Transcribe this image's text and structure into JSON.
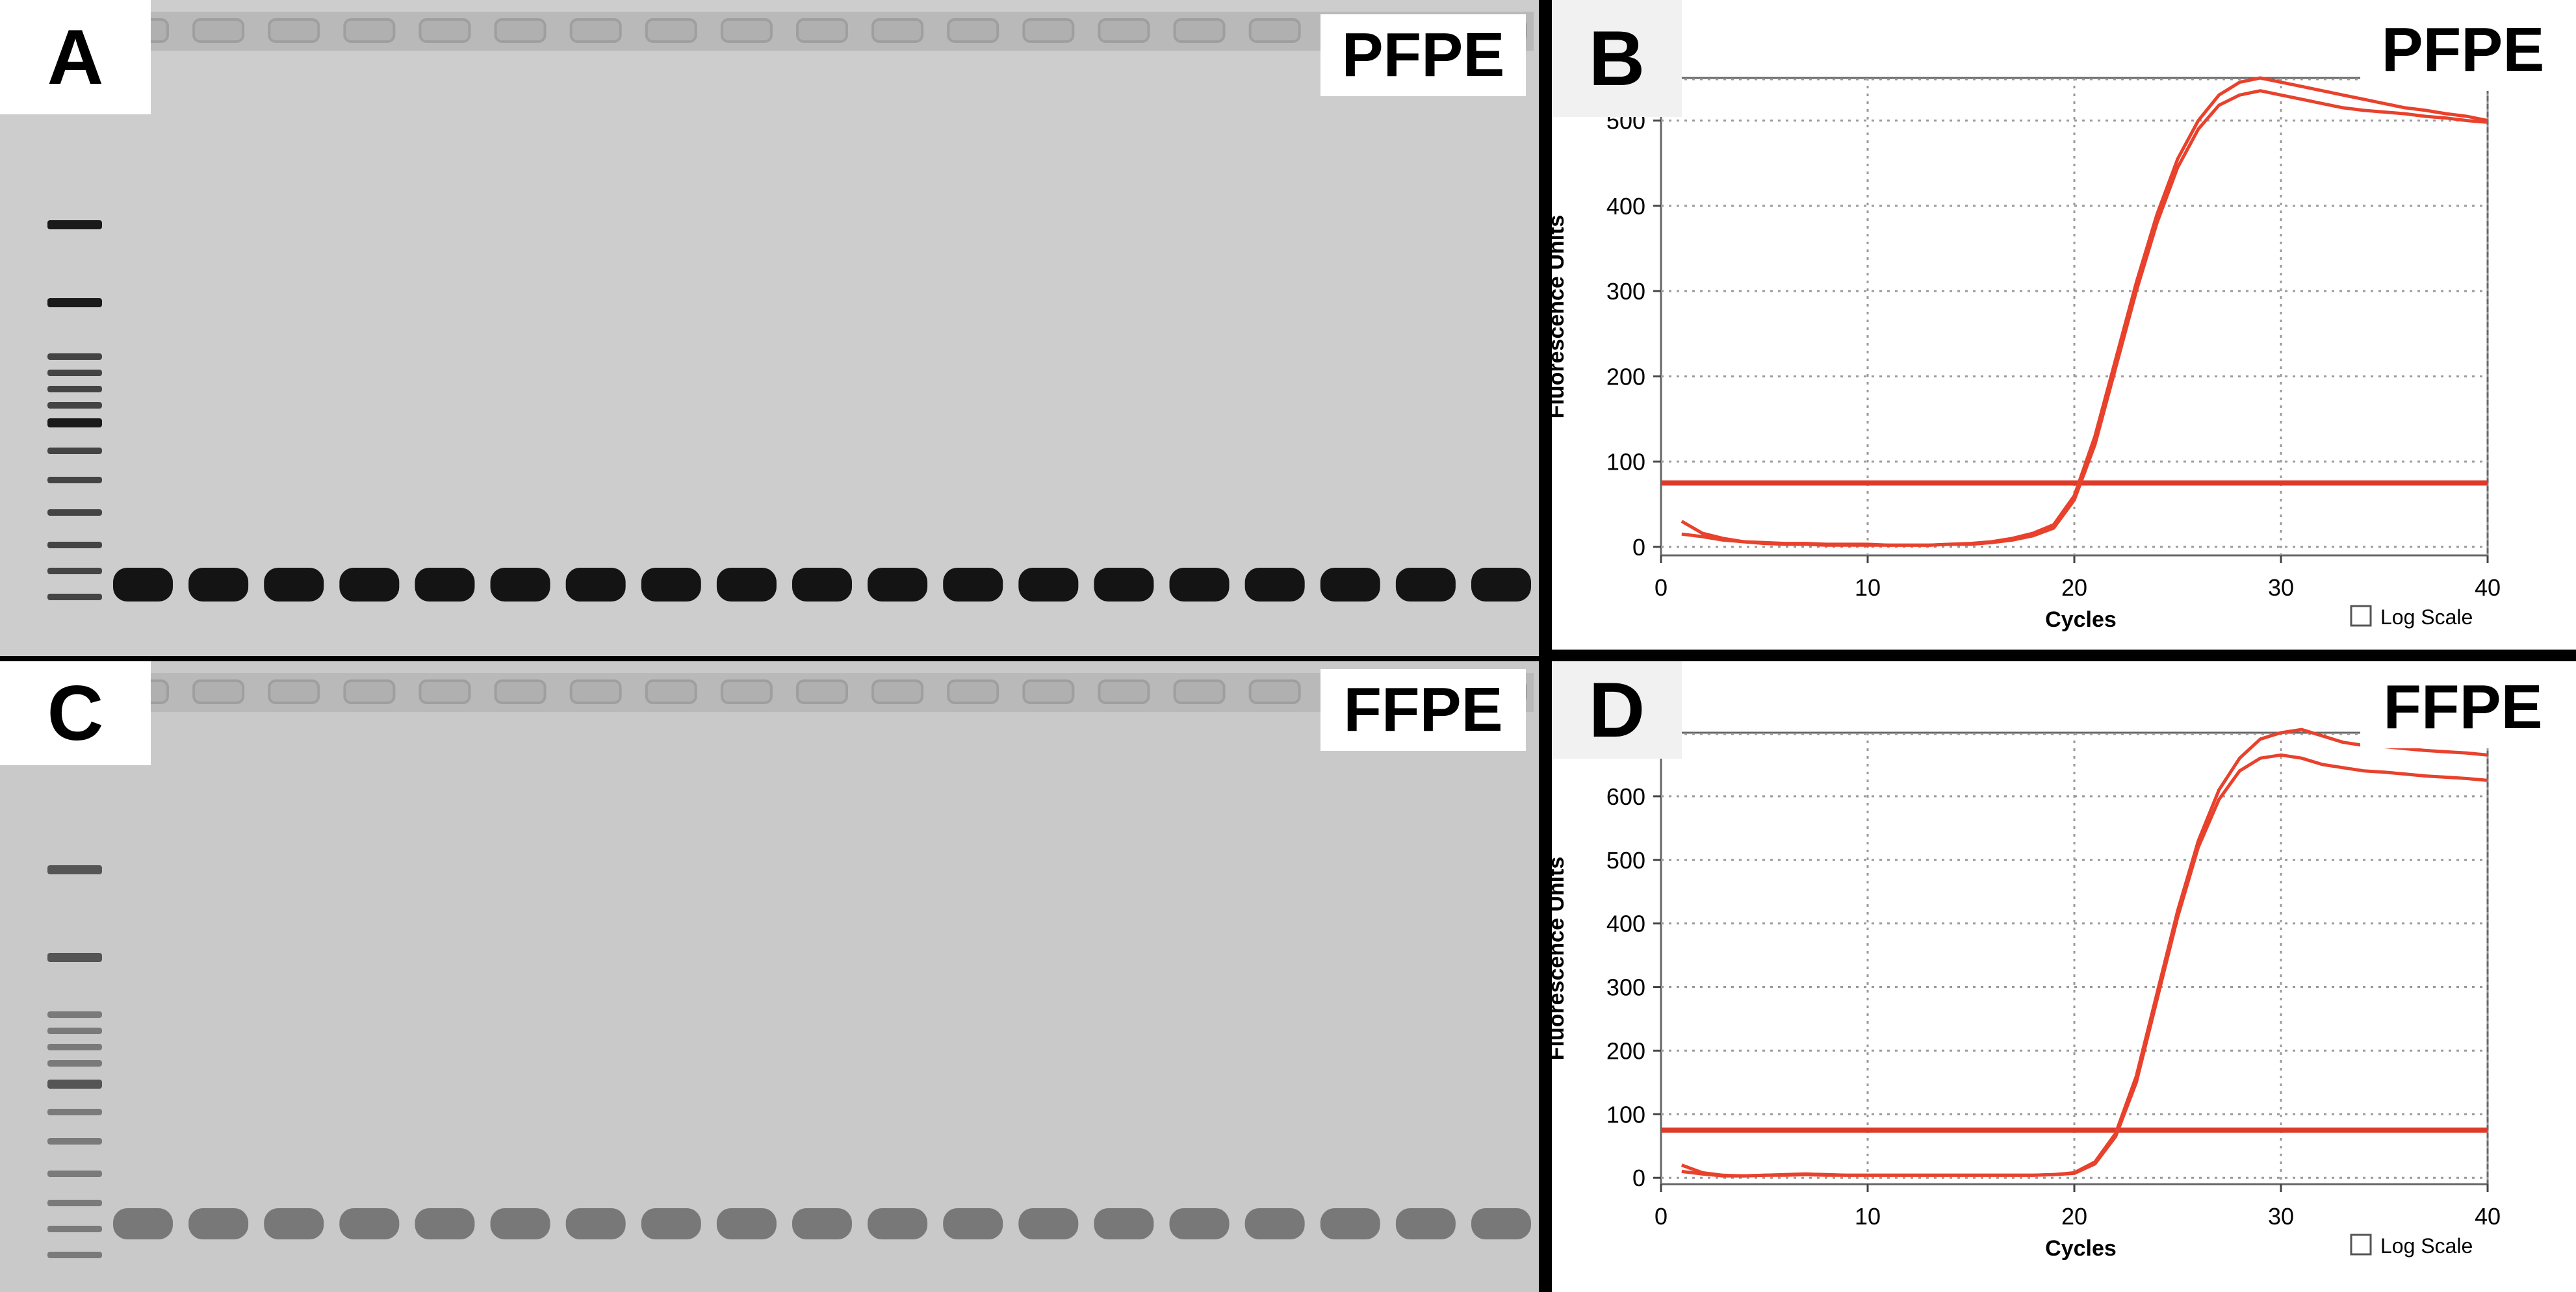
{
  "panels": {
    "a": {
      "letter": "A",
      "tag": "PFPE"
    },
    "b": {
      "letter": "B",
      "tag": "PFPE"
    },
    "c": {
      "letter": "C",
      "tag": "FFPE"
    },
    "d": {
      "letter": "D",
      "tag": "FFPE"
    }
  },
  "gels": {
    "a": {
      "lanes": 19,
      "ladder_bands": 13
    },
    "c": {
      "lanes": 19,
      "ladder_bands": 13
    }
  },
  "colors": {
    "curve": "#e8412c",
    "threshold": "#de3a2a",
    "grid": "#9a9a9a"
  },
  "chart_data": [
    {
      "type": "line",
      "ylabel": "Fluorescence Units",
      "xlabel": "Cycles",
      "checkbox_label": "Log Scale",
      "x_ticks": [
        0,
        10,
        20,
        30,
        40
      ],
      "y_ticks": [
        0,
        100,
        200,
        300,
        400,
        500
      ],
      "xlim": [
        0,
        40
      ],
      "ylim": [
        -10,
        550
      ],
      "threshold": 75,
      "x": [
        1,
        2,
        3,
        4,
        5,
        6,
        7,
        8,
        9,
        10,
        11,
        12,
        13,
        14,
        15,
        16,
        17,
        18,
        19,
        20,
        21,
        22,
        23,
        24,
        25,
        26,
        27,
        28,
        29,
        30,
        31,
        32,
        33,
        34,
        35,
        36,
        37,
        38,
        39,
        40
      ],
      "series": [
        {
          "values": [
            30,
            16,
            10,
            6,
            5,
            4,
            4,
            3,
            3,
            3,
            2,
            2,
            2,
            3,
            4,
            6,
            10,
            16,
            26,
            60,
            130,
            220,
            310,
            390,
            455,
            500,
            530,
            545,
            550,
            545,
            540,
            535,
            530,
            525,
            520,
            515,
            512,
            508,
            505,
            500
          ]
        },
        {
          "values": [
            15,
            12,
            8,
            6,
            4,
            3,
            3,
            2,
            2,
            2,
            2,
            2,
            2,
            3,
            3,
            5,
            8,
            13,
            22,
            55,
            120,
            210,
            300,
            380,
            445,
            490,
            518,
            530,
            535,
            530,
            525,
            520,
            515,
            512,
            510,
            508,
            505,
            503,
            500,
            498
          ]
        }
      ]
    },
    {
      "type": "line",
      "ylabel": "Fluorescence Units",
      "xlabel": "Cycles",
      "checkbox_label": "Log Scale",
      "x_ticks": [
        0,
        10,
        20,
        30,
        40
      ],
      "y_ticks": [
        0,
        100,
        200,
        300,
        400,
        500,
        600
      ],
      "xlim": [
        0,
        40
      ],
      "ylim": [
        -10,
        700
      ],
      "threshold": 75,
      "x": [
        1,
        2,
        3,
        4,
        5,
        6,
        7,
        8,
        9,
        10,
        11,
        12,
        13,
        14,
        15,
        16,
        17,
        18,
        19,
        20,
        21,
        22,
        23,
        24,
        25,
        26,
        27,
        28,
        29,
        30,
        31,
        32,
        33,
        34,
        35,
        36,
        37,
        38,
        39,
        40
      ],
      "series": [
        {
          "values": [
            20,
            8,
            4,
            3,
            4,
            5,
            6,
            5,
            4,
            4,
            4,
            4,
            4,
            4,
            4,
            4,
            4,
            4,
            5,
            8,
            25,
            70,
            160,
            290,
            420,
            530,
            610,
            660,
            690,
            700,
            705,
            695,
            685,
            680,
            678,
            675,
            672,
            670,
            668,
            665
          ]
        },
        {
          "values": [
            10,
            6,
            3,
            3,
            4,
            4,
            5,
            4,
            4,
            4,
            4,
            4,
            4,
            4,
            4,
            4,
            4,
            4,
            5,
            7,
            22,
            65,
            150,
            280,
            410,
            520,
            595,
            640,
            660,
            665,
            660,
            650,
            645,
            640,
            638,
            635,
            632,
            630,
            628,
            625
          ]
        }
      ]
    }
  ]
}
